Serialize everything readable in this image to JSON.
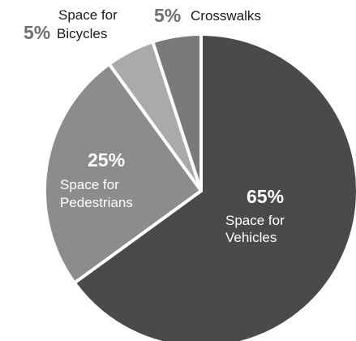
{
  "chart_data": {
    "type": "pie",
    "title": "",
    "start": "12 o'clock, clockwise",
    "slices": [
      {
        "category": "Space for Vehicles",
        "label_line1": "Space for",
        "label_line2": "Vehicles",
        "value": 65,
        "value_label": "65%",
        "color": "#4a4a4a"
      },
      {
        "category": "Space for Pedestrians",
        "label_line1": "Space for",
        "label_line2": "Pedestrians",
        "value": 25,
        "value_label": "25%",
        "color": "#8c8c8c"
      },
      {
        "category": "Space for Bicycles",
        "label_line1": "Space for",
        "label_line2": "Bicycles",
        "value": 5,
        "value_label": "5%",
        "color": "#aaaaaa"
      },
      {
        "category": "Crosswalks",
        "label_line1": "Crosswalks",
        "label_line2": "",
        "value": 5,
        "value_label": "5%",
        "color": "#7a7a7a"
      }
    ],
    "separator_color": "#ffffff",
    "label_text_color_inside": "#ffffff",
    "label_text_color_outside": "#1a1a1a",
    "value_label_color_outside": "#6e6e6e"
  }
}
